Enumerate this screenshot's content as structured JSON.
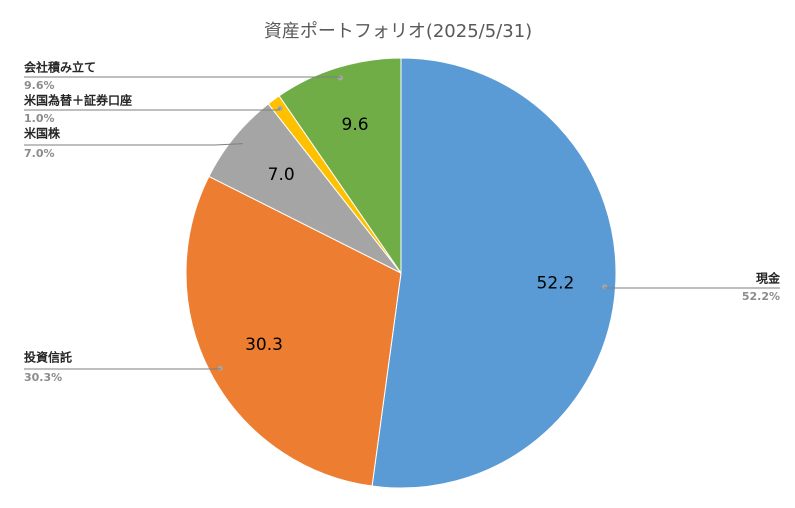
{
  "chart_data": {
    "type": "pie",
    "title": "資産ポートフォリオ(2025/5/31)",
    "categories": [
      "現金",
      "投資信託",
      "米国株",
      "米国為替＋証券口座",
      "会社積み立て"
    ],
    "values": [
      52.2,
      30.3,
      7.0,
      1.0,
      9.6
    ],
    "value_labels": [
      "52.2",
      "30.3",
      "7.0",
      null,
      "9.6"
    ],
    "percent_labels": [
      "52.2%",
      "30.3%",
      "7.0%",
      "1.0%",
      "9.6%"
    ],
    "colors": [
      "#5b9bd5",
      "#ed7d31",
      "#a5a5a5",
      "#ffc000",
      "#70ad47"
    ]
  }
}
